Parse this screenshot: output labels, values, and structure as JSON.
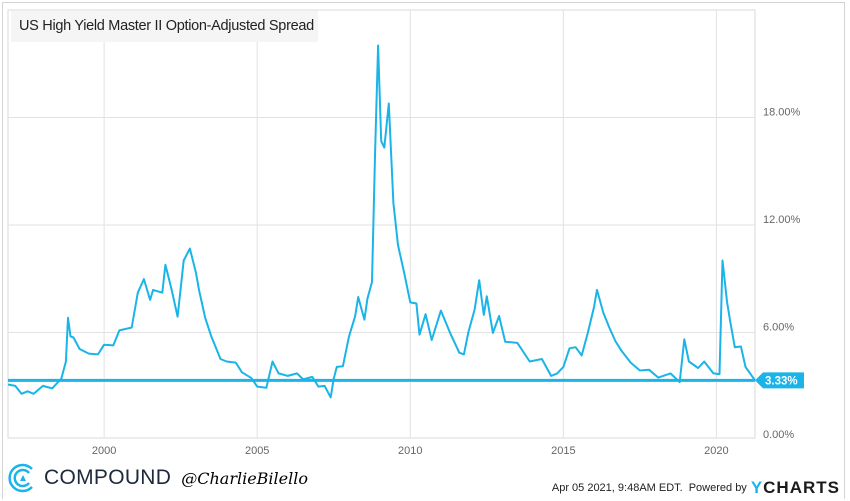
{
  "chart_data": {
    "type": "line",
    "title": "US High Yield Master II Option-Adjusted Spread",
    "xlabel": "",
    "ylabel": "",
    "xlim": [
      1996.86,
      2021.26
    ],
    "ylim": [
      0,
      23
    ],
    "grid": true,
    "y_ticks": [
      "0.00%",
      "6.00%",
      "12.00%",
      "18.00%"
    ],
    "y_tick_values": [
      0,
      6,
      12,
      18
    ],
    "x_ticks": [
      "2000",
      "2005",
      "2010",
      "2015",
      "2020"
    ],
    "x_tick_values": [
      2000,
      2005,
      2010,
      2015,
      2020
    ],
    "color": "#1ab4e8",
    "current_value": 3.33,
    "current_label": "3.33%",
    "series": [
      {
        "x": [
          1996.86,
          1997.1,
          1997.3,
          1997.5,
          1997.7,
          1998.0,
          1998.3,
          1998.6,
          1998.75,
          1998.82,
          1998.9,
          1999.0,
          1999.2,
          1999.5,
          1999.8,
          2000.0,
          2000.3,
          2000.5,
          2000.9,
          2001.1,
          2001.3,
          2001.5,
          2001.6,
          2001.9,
          2002.0,
          2002.2,
          2002.4,
          2002.6,
          2002.8,
          2003.0,
          2003.1,
          2003.3,
          2003.5,
          2003.8,
          2004.0,
          2004.3,
          2004.5,
          2004.8,
          2005.0,
          2005.3,
          2005.5,
          2005.7,
          2006.0,
          2006.3,
          2006.5,
          2006.8,
          2007.0,
          2007.2,
          2007.4,
          2007.5,
          2007.6,
          2007.8,
          2008.0,
          2008.2,
          2008.3,
          2008.5,
          2008.6,
          2008.75,
          2008.85,
          2008.95,
          2009.05,
          2009.15,
          2009.3,
          2009.45,
          2009.6,
          2009.8,
          2010.0,
          2010.2,
          2010.3,
          2010.5,
          2010.7,
          2011.0,
          2011.3,
          2011.6,
          2011.75,
          2011.9,
          2012.1,
          2012.25,
          2012.4,
          2012.5,
          2012.7,
          2012.9,
          2013.1,
          2013.5,
          2013.9,
          2014.3,
          2014.6,
          2014.8,
          2015.0,
          2015.2,
          2015.4,
          2015.6,
          2015.8,
          2016.0,
          2016.1,
          2016.3,
          2016.5,
          2016.7,
          2016.9,
          2017.2,
          2017.5,
          2017.8,
          2018.1,
          2018.5,
          2018.8,
          2018.95,
          2019.1,
          2019.4,
          2019.6,
          2019.9,
          2020.1,
          2020.2,
          2020.35,
          2020.45,
          2020.6,
          2020.8,
          2020.95,
          2021.1,
          2021.26
        ],
        "y": [
          3.1,
          2.9,
          2.7,
          2.6,
          2.7,
          2.9,
          3.0,
          3.3,
          4.5,
          6.7,
          5.9,
          5.6,
          5.2,
          4.7,
          4.9,
          5.2,
          5.4,
          6.0,
          6.4,
          8.1,
          9.1,
          7.7,
          8.5,
          8.1,
          9.9,
          8.3,
          7.0,
          9.9,
          10.8,
          9.2,
          8.5,
          6.7,
          5.9,
          4.4,
          4.5,
          4.2,
          3.9,
          3.35,
          3.1,
          2.8,
          4.5,
          3.6,
          3.7,
          3.6,
          3.5,
          3.4,
          3.1,
          2.9,
          2.5,
          3.3,
          4.2,
          4.0,
          5.9,
          6.8,
          8.1,
          6.6,
          8.0,
          8.7,
          16.2,
          21.9,
          16.8,
          16.2,
          18.9,
          13.1,
          11.0,
          9.2,
          7.8,
          7.5,
          6.0,
          6.9,
          5.7,
          7.1,
          6.1,
          4.75,
          4.9,
          5.9,
          7.4,
          8.8,
          7.1,
          7.9,
          6.1,
          6.8,
          5.6,
          5.3,
          4.5,
          4.4,
          3.7,
          3.6,
          4.2,
          5.0,
          5.3,
          4.6,
          6.1,
          7.3,
          8.5,
          7.0,
          6.4,
          5.4,
          5.1,
          4.2,
          4.0,
          3.8,
          3.6,
          3.6,
          3.35,
          5.5,
          4.5,
          3.9,
          4.5,
          3.6,
          3.8,
          9.9,
          7.8,
          6.5,
          5.3,
          5.1,
          4.2,
          3.6,
          3.33
        ]
      }
    ]
  },
  "footer": {
    "brand": "COMPOUND",
    "handle": "@CharlieBilello",
    "timestamp": "Apr 05 2021, 9:48AM EDT.",
    "powered_by": "Powered by",
    "ycharts_logo": "YCHARTS"
  }
}
